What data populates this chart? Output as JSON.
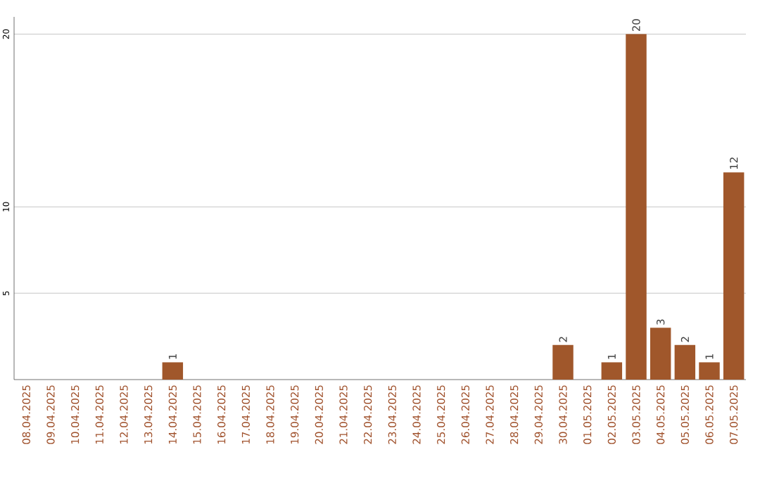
{
  "chart_data": {
    "type": "bar",
    "categories": [
      "08.04.2025",
      "09.04.2025",
      "10.04.2025",
      "11.04.2025",
      "12.04.2025",
      "13.04.2025",
      "14.04.2025",
      "15.04.2025",
      "16.04.2025",
      "17.04.2025",
      "18.04.2025",
      "19.04.2025",
      "20.04.2025",
      "21.04.2025",
      "22.04.2025",
      "23.04.2025",
      "24.04.2025",
      "25.04.2025",
      "26.04.2025",
      "27.04.2025",
      "28.04.2025",
      "29.04.2025",
      "30.04.2025",
      "01.05.2025",
      "02.05.2025",
      "03.05.2025",
      "04.05.2025",
      "05.05.2025",
      "06.05.2025",
      "07.05.2025"
    ],
    "values": [
      0,
      0,
      0,
      0,
      0,
      0,
      1,
      0,
      0,
      0,
      0,
      0,
      0,
      0,
      0,
      0,
      0,
      0,
      0,
      0,
      0,
      0,
      2,
      0,
      1,
      20,
      3,
      2,
      1,
      12
    ],
    "value_labels": [
      null,
      null,
      null,
      null,
      null,
      null,
      "1",
      null,
      null,
      null,
      null,
      null,
      null,
      null,
      null,
      null,
      null,
      null,
      null,
      null,
      null,
      null,
      "2",
      null,
      "1",
      "20",
      "3",
      "2",
      "1",
      "12"
    ],
    "color": "#a0572b",
    "ylim": [
      0,
      21
    ],
    "yticks": [
      5,
      10,
      20
    ],
    "grid": "y"
  }
}
